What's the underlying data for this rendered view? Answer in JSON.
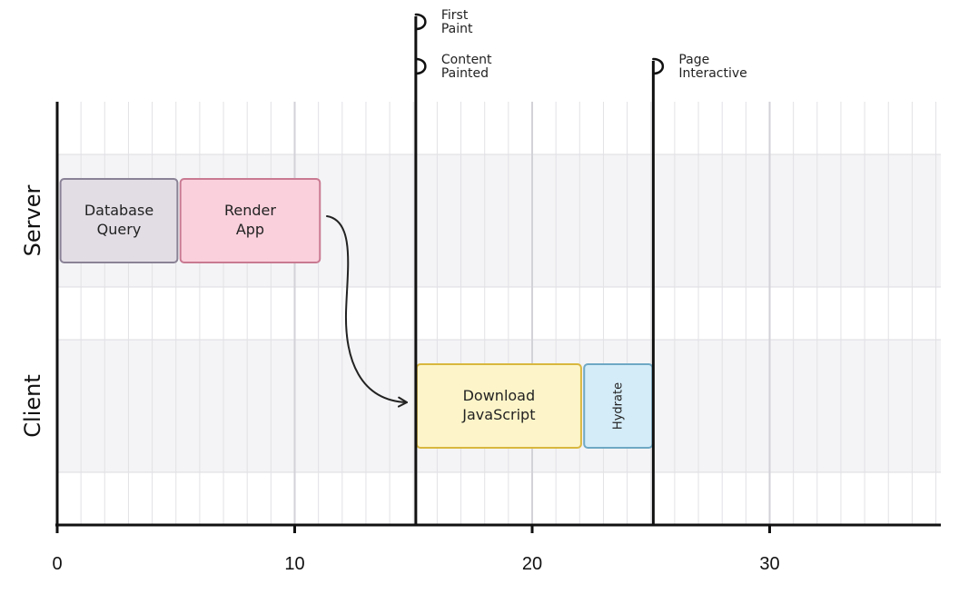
{
  "lanes": [
    {
      "label": "Server"
    },
    {
      "label": "Client"
    }
  ],
  "axis": {
    "min": 0,
    "max": 37,
    "ticks": [
      0,
      10,
      20,
      30
    ],
    "minor_step": 1
  },
  "tasks": [
    {
      "id": "database-query",
      "lane": 0,
      "start": 0.1,
      "end": 5.1,
      "lines": [
        "Database",
        "Query"
      ],
      "fill": "#e2dde5",
      "stroke": "#8a8296",
      "vertical": false
    },
    {
      "id": "render-app",
      "lane": 0,
      "start": 5.15,
      "end": 11.1,
      "lines": [
        "Render",
        "App"
      ],
      "fill": "#f9d0dc",
      "stroke": "#c97a92",
      "vertical": false
    },
    {
      "id": "download-javascript",
      "lane": 1,
      "start": 15.1,
      "end": 22.1,
      "lines": [
        "Download",
        "JavaScript"
      ],
      "fill": "#fdf5c9",
      "stroke": "#d9b73e",
      "vertical": false
    },
    {
      "id": "hydrate",
      "lane": 1,
      "start": 22.15,
      "end": 25.1,
      "lines": [
        "Hydrate"
      ],
      "fill": "#d4ecf8",
      "stroke": "#6ea8c4",
      "vertical": true
    }
  ],
  "milestones": [
    {
      "id": "first-paint",
      "at": 15.1,
      "flags": [
        [
          "First",
          "Paint"
        ],
        [
          "Content",
          "Painted"
        ]
      ]
    },
    {
      "id": "page-interactive",
      "at": 25.1,
      "flags": [
        [
          "Page",
          "Interactive"
        ]
      ]
    }
  ],
  "colors": {
    "lane_band": "#f4f4f6",
    "grid_minor": "#e2e2e6",
    "grid_major": "#d2d2d8",
    "axis": "#111111"
  }
}
